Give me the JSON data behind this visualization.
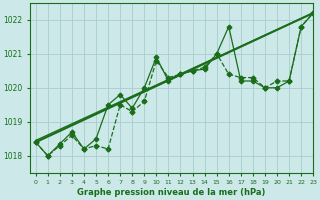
{
  "bg_color": "#cce8e8",
  "grid_color": "#aacccc",
  "line_color": "#1a6e1a",
  "title": "Graphe pression niveau de la mer (hPa)",
  "xlim": [
    -0.5,
    23
  ],
  "ylim": [
    1017.5,
    1022.5
  ],
  "yticks": [
    1018,
    1019,
    1020,
    1021,
    1022
  ],
  "xticks": [
    0,
    1,
    2,
    3,
    4,
    5,
    6,
    7,
    8,
    9,
    10,
    11,
    12,
    13,
    14,
    15,
    16,
    17,
    18,
    19,
    20,
    21,
    22,
    23
  ],
  "series": [
    {
      "x": [
        0,
        1,
        2,
        3,
        4,
        5,
        6,
        7,
        8,
        9,
        10,
        11,
        12,
        13,
        14,
        15,
        16,
        17,
        18,
        19,
        20,
        21,
        22,
        23
      ],
      "y": [
        1018.4,
        1018.0,
        1018.3,
        1018.6,
        1018.2,
        1018.3,
        1018.2,
        1019.5,
        1019.3,
        1019.6,
        1020.8,
        1020.3,
        1020.4,
        1020.5,
        1020.6,
        1021.0,
        1020.4,
        1020.3,
        1020.3,
        1020.0,
        1020.2,
        1020.2,
        1021.8,
        1022.2
      ],
      "marker": "D",
      "markersize": 2.5,
      "linewidth": 0.9,
      "linestyle": "--"
    },
    {
      "x": [
        0,
        1,
        2,
        3,
        4,
        5,
        6,
        7,
        8,
        9,
        10,
        11,
        12,
        13,
        14,
        15,
        16,
        17,
        18,
        19,
        20,
        21,
        22,
        23
      ],
      "y": [
        1018.4,
        1018.0,
        1018.35,
        1018.7,
        1018.2,
        1018.5,
        1019.5,
        1019.8,
        1019.4,
        1020.0,
        1020.9,
        1020.2,
        1020.4,
        1020.5,
        1020.55,
        1021.0,
        1021.8,
        1020.2,
        1020.2,
        1020.0,
        1020.0,
        1020.2,
        1021.8,
        1022.2
      ],
      "marker": "P",
      "markersize": 3,
      "linewidth": 0.9,
      "linestyle": "-"
    },
    {
      "x": [
        0,
        23
      ],
      "y": [
        1018.4,
        1022.2
      ],
      "marker": null,
      "markersize": 0,
      "linewidth": 1.5,
      "linestyle": "-"
    },
    {
      "x": [
        0,
        23
      ],
      "y": [
        1018.45,
        1022.2
      ],
      "marker": null,
      "markersize": 0,
      "linewidth": 1.0,
      "linestyle": "-"
    }
  ]
}
